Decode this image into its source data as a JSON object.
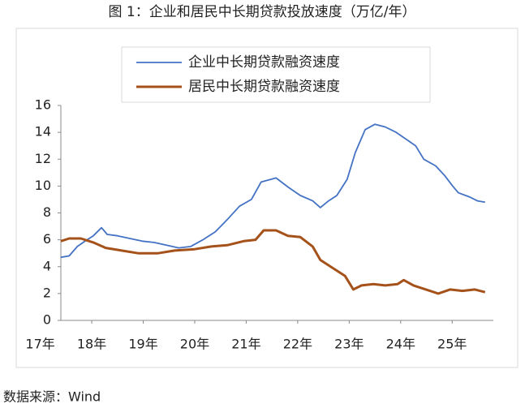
{
  "chart_data": {
    "type": "line",
    "title": "图 1：企业和居民中长期贷款投放速度（万亿/年）",
    "source": "数据来源：Wind",
    "xlim": [
      17.4,
      25.8
    ],
    "xticks": [
      {
        "value": 17,
        "label": "17年"
      },
      {
        "value": 18,
        "label": "18年"
      },
      {
        "value": 19,
        "label": "19年"
      },
      {
        "value": 20,
        "label": "20年"
      },
      {
        "value": 21,
        "label": "21年"
      },
      {
        "value": 22,
        "label": "22年"
      },
      {
        "value": 23,
        "label": "23年"
      },
      {
        "value": 24,
        "label": "24年"
      },
      {
        "value": 25,
        "label": "25年"
      }
    ],
    "ylim": [
      0,
      16
    ],
    "yticks": [
      0,
      2,
      4,
      6,
      8,
      10,
      12,
      14,
      16
    ],
    "grid": false,
    "legend": "top",
    "series": [
      {
        "name": "企业中长期贷款融资速度",
        "color": "#4472c4",
        "width": 1.8,
        "x": [
          17.4,
          17.56,
          17.72,
          17.87,
          18.03,
          18.19,
          18.3,
          18.5,
          18.74,
          18.98,
          19.21,
          19.45,
          19.69,
          19.92,
          20.16,
          20.4,
          20.63,
          20.87,
          21.1,
          21.29,
          21.58,
          21.82,
          22.05,
          22.29,
          22.44,
          22.6,
          22.76,
          22.96,
          23.12,
          23.31,
          23.5,
          23.7,
          23.91,
          24.1,
          24.29,
          24.45,
          24.68,
          24.85,
          25.01,
          25.12,
          25.33,
          25.49,
          25.64
        ],
        "values": [
          4.7,
          4.8,
          5.5,
          5.9,
          6.3,
          6.9,
          6.4,
          6.3,
          6.1,
          5.9,
          5.8,
          5.6,
          5.4,
          5.5,
          6.0,
          6.6,
          7.5,
          8.5,
          9.0,
          10.3,
          10.6,
          9.9,
          9.3,
          8.9,
          8.4,
          8.9,
          9.3,
          10.5,
          12.5,
          14.2,
          14.6,
          14.4,
          14.0,
          13.5,
          13.0,
          12.0,
          11.5,
          10.8,
          10.0,
          9.5,
          9.2,
          8.9,
          8.8
        ]
      },
      {
        "name": "居民中长期贷款融资速度",
        "color": "#a5511a",
        "width": 3,
        "x": [
          17.4,
          17.56,
          17.79,
          18.03,
          18.27,
          18.58,
          18.9,
          19.29,
          19.61,
          20.0,
          20.32,
          20.63,
          20.95,
          21.18,
          21.34,
          21.58,
          21.81,
          22.05,
          22.29,
          22.44,
          22.68,
          22.92,
          23.08,
          23.24,
          23.47,
          23.7,
          23.94,
          24.06,
          24.25,
          24.49,
          24.73,
          24.96,
          25.2,
          25.44,
          25.64
        ],
        "values": [
          5.9,
          6.1,
          6.1,
          5.8,
          5.4,
          5.2,
          5.0,
          5.0,
          5.2,
          5.3,
          5.5,
          5.6,
          5.9,
          6.0,
          6.7,
          6.7,
          6.3,
          6.2,
          5.5,
          4.5,
          3.9,
          3.3,
          2.3,
          2.6,
          2.7,
          2.6,
          2.7,
          3.0,
          2.6,
          2.3,
          2.0,
          2.3,
          2.2,
          2.3,
          2.1
        ]
      }
    ]
  }
}
